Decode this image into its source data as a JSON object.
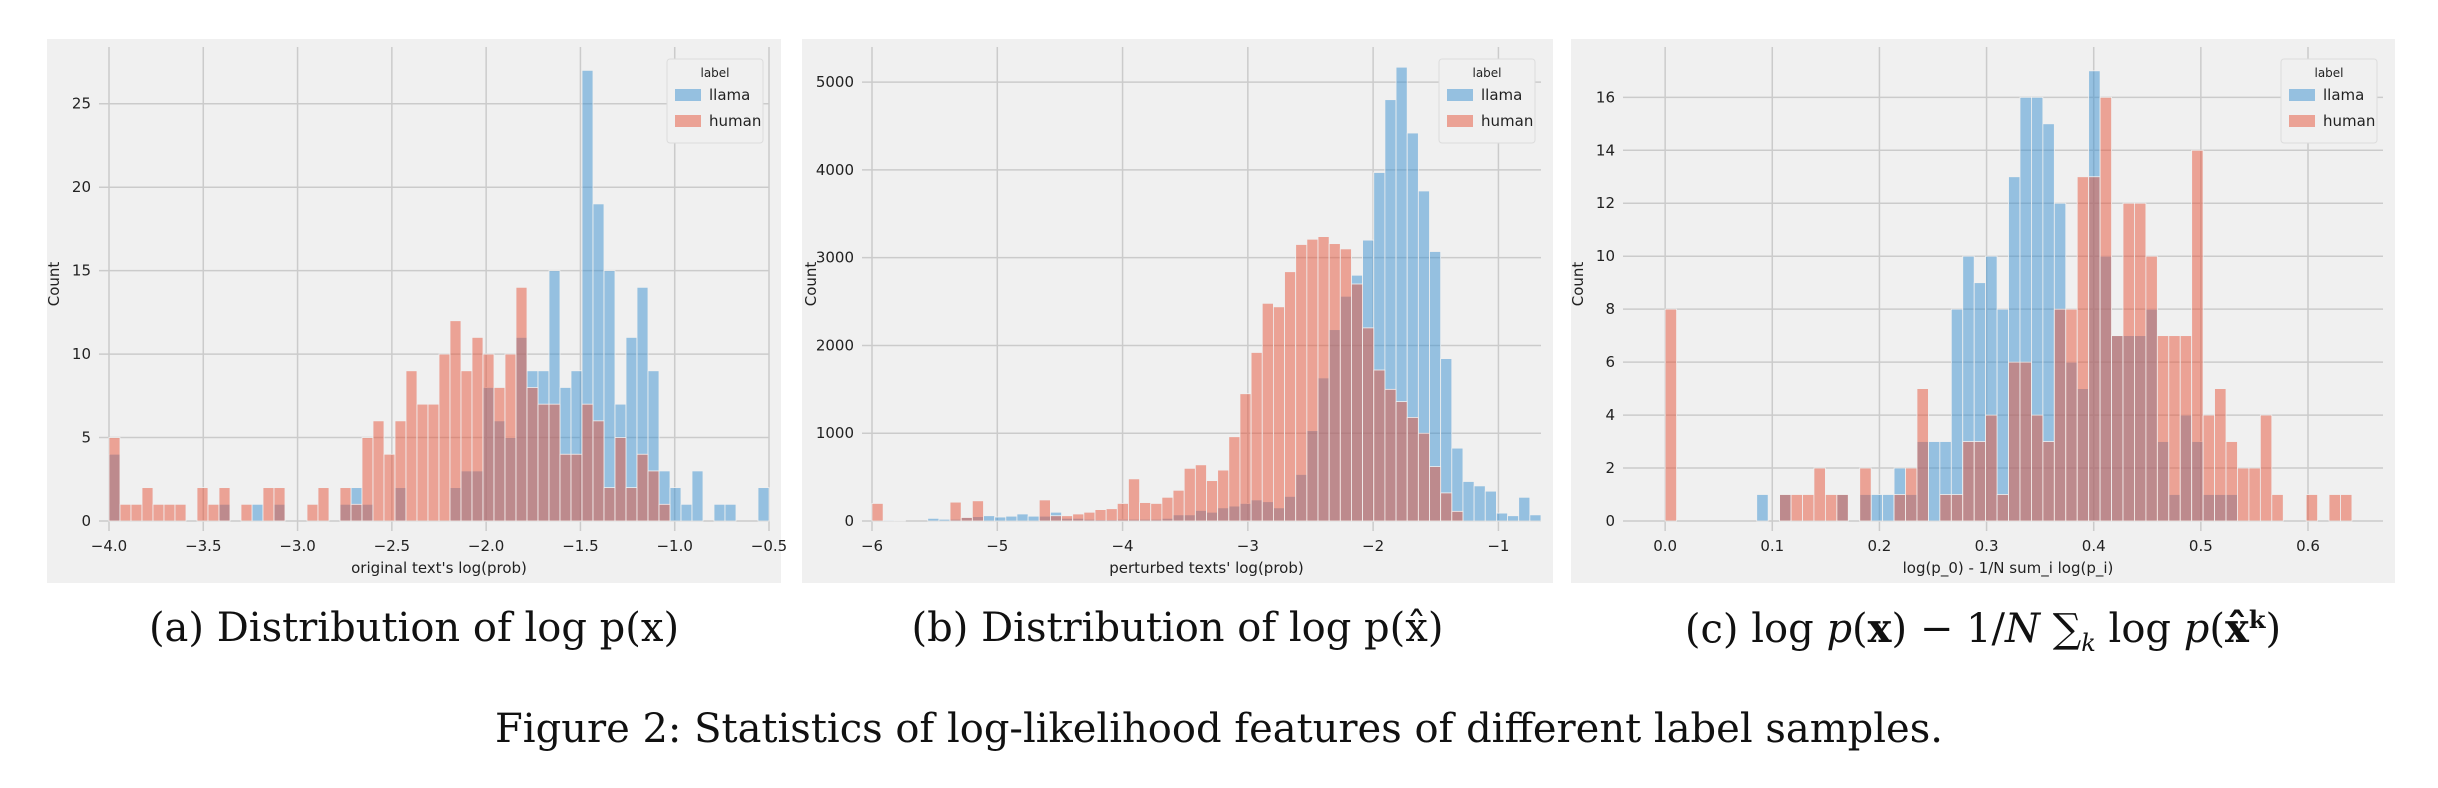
{
  "style": {
    "background": "#f0f0f0",
    "grid": "#cbcbcb",
    "llama_color": "#3a8fd0",
    "human_color": "#e5533a"
  },
  "chart_data": [
    {
      "type": "histogram",
      "xlabel": "original text's log(prob)",
      "ylabel": "Count",
      "xlim": [
        -4.0,
        -0.5
      ],
      "ylim": [
        0,
        28.4
      ],
      "xticks": [
        "−4.0",
        "−3.5",
        "−3.0",
        "−2.5",
        "−2.0",
        "−1.5",
        "−1.0",
        "−0.5"
      ],
      "xtick_values": [
        -4.0,
        -3.5,
        -3.0,
        -2.5,
        -2.0,
        -1.5,
        -1.0,
        -0.5
      ],
      "yticks": [
        0,
        5,
        10,
        15,
        20,
        25
      ],
      "grid": true,
      "legend": {
        "title": "label",
        "position": "top-right"
      },
      "bin_range": [
        -4.0,
        -0.5
      ],
      "series": [
        {
          "name": "llama",
          "values": [
            4,
            0,
            0,
            0,
            0,
            0,
            0,
            0,
            0,
            0,
            1,
            0,
            0,
            1,
            0,
            1,
            0,
            0,
            0,
            0,
            0,
            1,
            2,
            1,
            0,
            0,
            2,
            0,
            0,
            0,
            0,
            2,
            3,
            3,
            8,
            6,
            5,
            11,
            9,
            9,
            15,
            8,
            9,
            27,
            19,
            15,
            7,
            11,
            14,
            9,
            3,
            2,
            1,
            3,
            0,
            1,
            1,
            0,
            0,
            2
          ]
        },
        {
          "name": "human",
          "values": [
            5,
            1,
            1,
            2,
            1,
            1,
            1,
            0,
            2,
            1,
            2,
            0,
            1,
            0,
            2,
            2,
            0,
            0,
            1,
            2,
            0,
            2,
            1,
            5,
            6,
            4,
            6,
            9,
            7,
            7,
            10,
            12,
            9,
            11,
            10,
            8,
            10,
            14,
            8,
            7,
            7,
            4,
            4,
            7,
            6,
            2,
            5,
            2,
            4,
            3,
            1,
            0,
            0,
            0,
            0,
            0,
            0,
            0,
            0,
            0
          ]
        }
      ],
      "caption": {
        "prefix": "(a) Distribution of ",
        "math": "log p(x)"
      }
    },
    {
      "type": "histogram",
      "xlabel": "perturbed texts' log(prob)",
      "ylabel": "Count",
      "xlim": [
        -6.0,
        -0.66
      ],
      "ylim": [
        0,
        5400
      ],
      "xticks": [
        "−6",
        "−5",
        "−4",
        "−3",
        "−2",
        "−1"
      ],
      "xtick_values": [
        -6,
        -5,
        -4,
        -3,
        -2,
        -1
      ],
      "yticks": [
        0,
        1000,
        2000,
        3000,
        4000,
        5000
      ],
      "grid": true,
      "legend": {
        "title": "label",
        "position": "top-right"
      },
      "bin_range": [
        -6.0,
        -0.66
      ],
      "series": [
        {
          "name": "llama",
          "values": [
            0,
            10,
            5,
            0,
            0,
            30,
            20,
            20,
            40,
            50,
            60,
            45,
            55,
            80,
            55,
            55,
            100,
            30,
            30,
            20,
            15,
            15,
            20,
            20,
            20,
            20,
            30,
            70,
            70,
            120,
            100,
            150,
            170,
            200,
            240,
            220,
            150,
            280,
            530,
            1030,
            1630,
            2180,
            2560,
            2800,
            3200,
            3970,
            4800,
            5170,
            4420,
            3760,
            3070,
            1850,
            830,
            450,
            400,
            340,
            90,
            60,
            270,
            70
          ]
        },
        {
          "name": "human",
          "values": [
            200,
            0,
            0,
            0,
            0,
            0,
            0,
            215,
            40,
            230,
            0,
            0,
            0,
            0,
            0,
            240,
            60,
            60,
            80,
            100,
            130,
            140,
            200,
            480,
            210,
            200,
            270,
            350,
            600,
            640,
            460,
            580,
            960,
            1450,
            1920,
            2480,
            2440,
            2840,
            3150,
            3210,
            3240,
            3160,
            3100,
            2700,
            2200,
            1720,
            1500,
            1360,
            1180,
            1000,
            620,
            320,
            110,
            0,
            0,
            0,
            0,
            0,
            0,
            0
          ]
        }
      ],
      "caption": {
        "prefix": "(b) Distribution of ",
        "math": "log p(x̂)"
      }
    },
    {
      "type": "histogram",
      "xlabel": "log(p_0) - 1/N sum_i log(p_i)",
      "ylabel": "Count",
      "xlim": [
        -0.03,
        0.67
      ],
      "ylim": [
        0,
        17.9
      ],
      "xticks": [
        "0.0",
        "0.1",
        "0.2",
        "0.3",
        "0.4",
        "0.5",
        "0.6"
      ],
      "xtick_values": [
        0,
        0.1,
        0.2,
        0.3,
        0.4,
        0.5,
        0.6
      ],
      "yticks": [
        0,
        2,
        4,
        6,
        8,
        10,
        12,
        14,
        16
      ],
      "grid": true,
      "legend": {
        "title": "label",
        "position": "top-right"
      },
      "bin_range": [
        0.0,
        0.641
      ],
      "series": [
        {
          "name": "llama",
          "values": [
            0,
            0,
            0,
            0,
            0,
            0,
            0,
            0,
            1,
            0,
            1,
            0,
            0,
            0,
            0,
            1,
            0,
            1,
            1,
            1,
            2,
            1,
            3,
            3,
            3,
            8,
            10,
            9,
            10,
            8,
            13,
            16,
            16,
            15,
            12,
            6,
            5,
            17,
            10,
            7,
            7,
            7,
            8,
            3,
            1,
            4,
            3,
            1,
            1,
            1,
            0,
            0,
            0,
            0,
            0,
            0,
            0,
            0,
            0,
            0
          ]
        },
        {
          "name": "human",
          "values": [
            8,
            0,
            0,
            0,
            0,
            0,
            0,
            0,
            0,
            0,
            1,
            1,
            1,
            2,
            1,
            1,
            0,
            2,
            0,
            0,
            1,
            2,
            5,
            0,
            1,
            1,
            3,
            3,
            4,
            1,
            6,
            6,
            4,
            3,
            8,
            8,
            13,
            13,
            16,
            7,
            12,
            12,
            10,
            7,
            7,
            7,
            14,
            4,
            5,
            3,
            2,
            2,
            4,
            1,
            0,
            0,
            1,
            0,
            1,
            1
          ]
        }
      ],
      "caption": {
        "prefix": "(c) ",
        "math": "log p(x) − 1/N ∑k log p(x̂^k)"
      }
    }
  ],
  "figure_caption": "Figure 2: Statistics of log-likelihood features of different label samples."
}
